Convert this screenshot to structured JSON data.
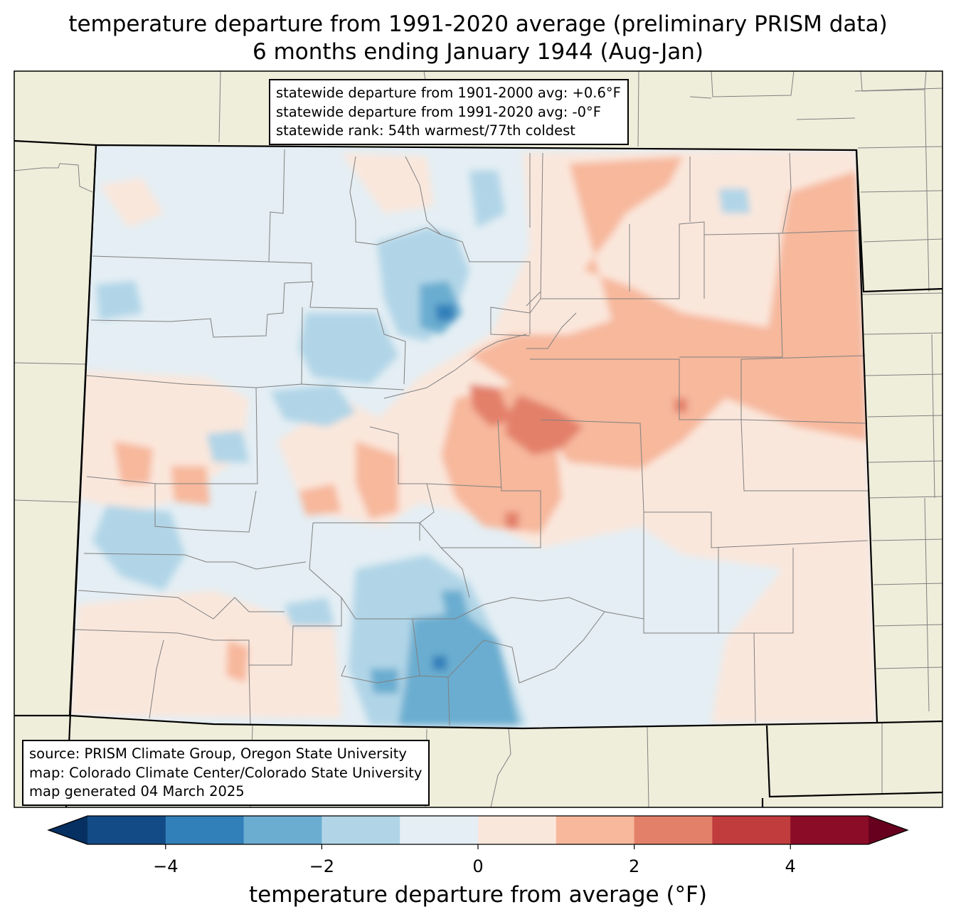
{
  "title": {
    "line1": "temperature departure from 1991-2020 average (preliminary PRISM data)",
    "line2": "6 months ending January 1944 (Aug-Jan)"
  },
  "stats_box": {
    "line1": "statewide departure from 1901-2000 avg: +0.6°F",
    "line2": "statewide departure from 1991-2020 avg: -0°F",
    "line3": "statewide rank: 54th warmest/77th coldest"
  },
  "source_box": {
    "line1": "source: PRISM Climate Group, Oregon State University",
    "line2": "map: Colorado Climate Center/Colorado State University",
    "line3": "map generated 04 March 2025"
  },
  "colorbar": {
    "label": "temperature departure from average (°F)",
    "min": -5,
    "max": 5,
    "step": 1,
    "ticks": [
      {
        "value": -4,
        "label": "−4"
      },
      {
        "value": -2,
        "label": "−2"
      },
      {
        "value": 0,
        "label": "0"
      },
      {
        "value": 2,
        "label": "2"
      },
      {
        "value": 4,
        "label": "4"
      }
    ],
    "bin_colors": [
      "#134b87",
      "#3280ba",
      "#6badd0",
      "#b1d5e7",
      "#e4eef4",
      "#fae7dc",
      "#f7b89c",
      "#e3806a",
      "#c03c3d",
      "#8a0c26"
    ],
    "under_color": "#053061",
    "over_color": "#67001f"
  },
  "colors": {
    "land_outside": "#efeedb",
    "state_border": "#000000",
    "county_border": "#808080"
  },
  "chart_data": {
    "type": "heatmap",
    "region": "Colorado",
    "variable": "temperature departure from 1991-2020 average",
    "units": "°F",
    "period": "6 months ending January 1944 (Aug-Jan)",
    "statewide_departure_1901_2000": 0.6,
    "statewide_departure_1991_2020": 0,
    "rank_warmest": 54,
    "rank_coldest": 77,
    "patterns": [
      {
        "area": "northeast plains",
        "departure_range": [
          1,
          2
        ]
      },
      {
        "area": "east-central (Denver/Front Range south)",
        "departure_range": [
          2,
          3
        ]
      },
      {
        "area": "San Luis Valley / south-central",
        "departure_range": [
          -4,
          -2
        ]
      },
      {
        "area": "north-central mountains",
        "departure_range": [
          -4,
          -2
        ]
      },
      {
        "area": "western slope",
        "departure_range": [
          -2,
          0
        ]
      },
      {
        "area": "southeast plains",
        "departure_range": [
          -1,
          1
        ]
      }
    ]
  }
}
